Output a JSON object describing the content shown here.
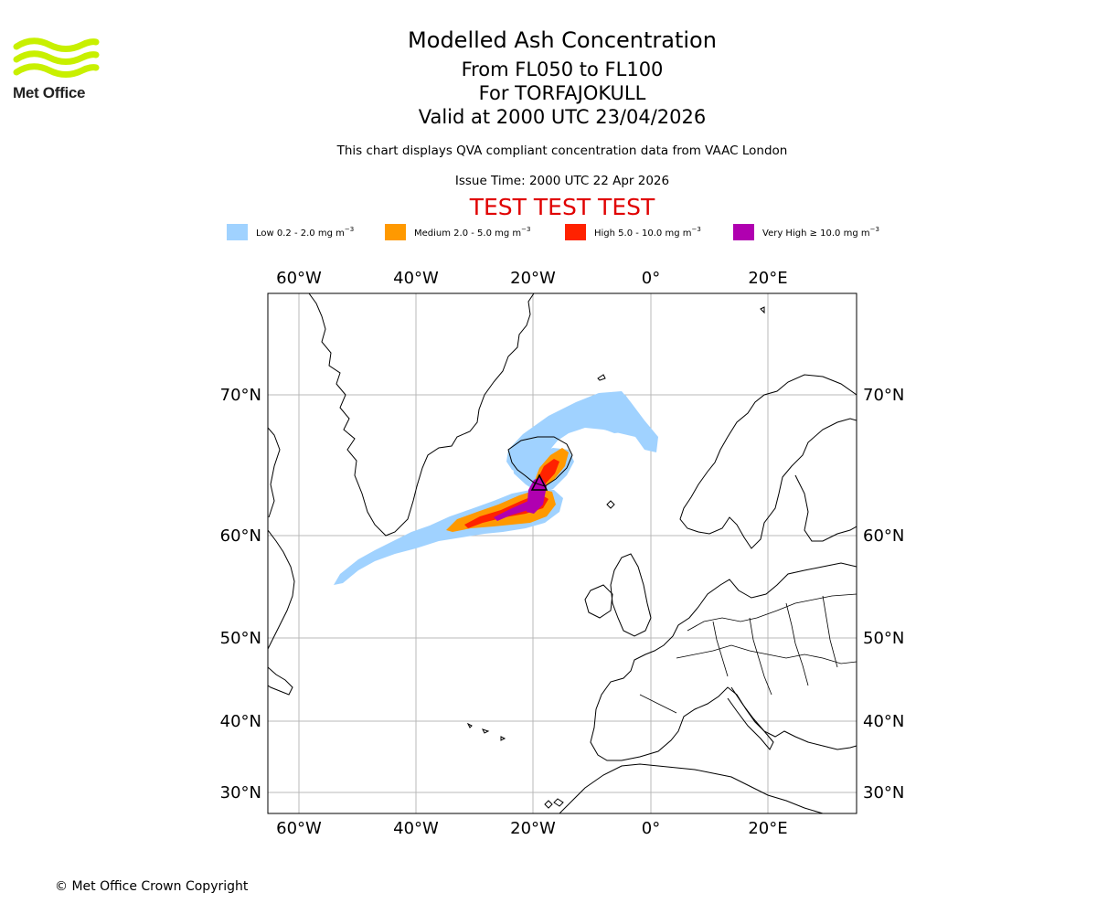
{
  "brand": {
    "name": "Met Office",
    "color": "#c8f000",
    "text_color": "#222222"
  },
  "header": {
    "title": "Modelled Ash Concentration",
    "levels": "From FL050 to FL100",
    "volcano": "For TORFAJOKULL",
    "valid": "Valid at 2000 UTC 23/04/2026",
    "description": "This chart displays QVA compliant concentration data from VAAC London",
    "issue_time": "Issue Time: 2000 UTC 22 Apr 2026",
    "test_banner": "TEST TEST TEST",
    "test_color": "#e00000"
  },
  "legend": [
    {
      "label": "Low 0.2 - 2.0 mg m",
      "color": "#a0d2ff"
    },
    {
      "label": "Medium 2.0 - 5.0 mg m",
      "color": "#ff9900"
    },
    {
      "label": "High 5.0 - 10.0 mg m",
      "color": "#ff2200"
    },
    {
      "label": "Very High ≥ 10.0 mg m",
      "color": "#b000b0"
    }
  ],
  "legend_unit_exp": "−3",
  "map": {
    "lon_range": [
      -65,
      35
    ],
    "lat_range": [
      28,
      77
    ],
    "lon_ticks": [
      "60°W",
      "40°W",
      "20°W",
      "0°",
      "20°E"
    ],
    "lat_ticks": [
      "70°N",
      "60°N",
      "50°N",
      "40°N",
      "30°N"
    ],
    "volcano_name": "TORFAJOKULL",
    "volcano_lat": 63.9,
    "volcano_lon": -19.1
  },
  "footer": {
    "copyright": "© Met Office Crown Copyright"
  }
}
